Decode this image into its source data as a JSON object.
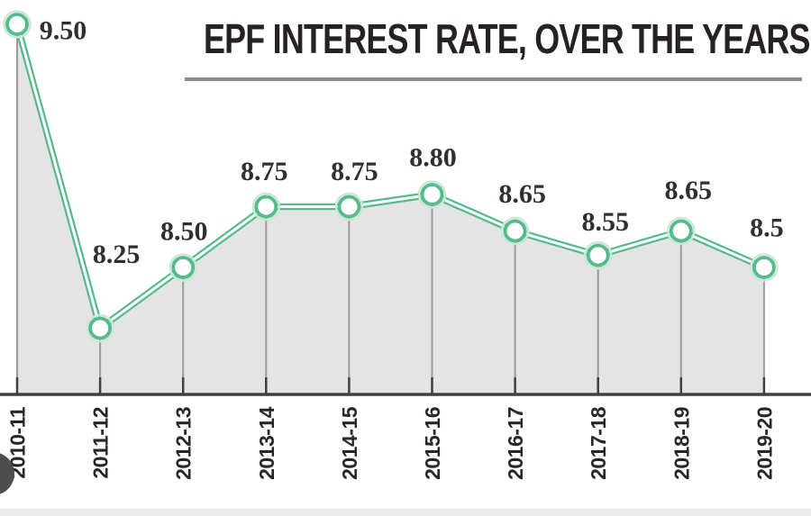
{
  "title": "EPF INTEREST RATE, OVER THE YEARS",
  "chart_data": {
    "type": "line",
    "title": "EPF INTEREST RATE, OVER THE YEARS",
    "categories": [
      "2010-11",
      "2011-12",
      "2012-13",
      "2013-14",
      "2014-15",
      "2015-16",
      "2016-17",
      "2017-18",
      "2018-19",
      "2019-20"
    ],
    "values": [
      9.5,
      8.25,
      8.5,
      8.75,
      8.75,
      8.8,
      8.65,
      8.55,
      8.65,
      8.5
    ],
    "value_labels": [
      "9.50",
      "8.25",
      "8.50",
      "8.75",
      "8.75",
      "8.80",
      "8.65",
      "8.55",
      "8.65",
      "8.5"
    ],
    "xlabel": "",
    "ylabel": "",
    "ylim": [
      8.0,
      9.6
    ],
    "grid": "off",
    "legend": "none",
    "area_fill": true,
    "marker": "open-circle",
    "x_tick_rotation": -90
  },
  "colors": {
    "line_green": "#56ba8b",
    "marker_halo": "#c9e8d8",
    "area_fill": "#e4e4e4",
    "drop_line": "#9b9b9b",
    "axis": "#3f3f3f",
    "underline": "#8c8c8c",
    "title_text": "#262122",
    "value_text": "#332e2f",
    "year_text": "#2a2627",
    "bottom_strip": "#eaeaea",
    "corner_circle": "#4e4e4e"
  }
}
